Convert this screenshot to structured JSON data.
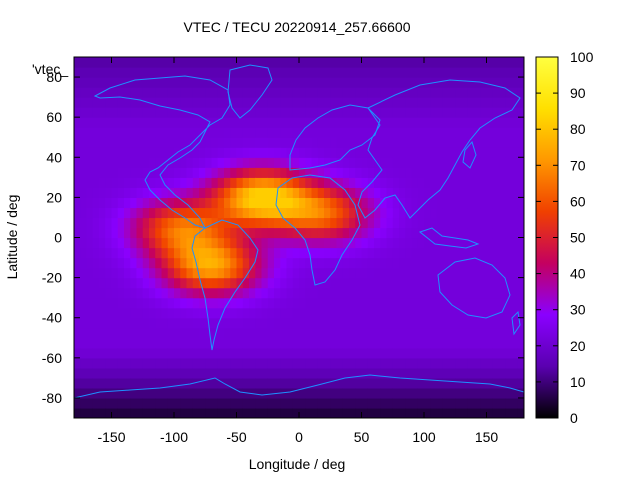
{
  "chart_data": {
    "type": "heatmap",
    "title": "VTEC / TECU 20220914_257.66600",
    "xlabel": "Longitude / deg",
    "ylabel": "Latitude / deg",
    "key_label": "'vtec_",
    "xlim": [
      -180,
      180
    ],
    "ylim": [
      -90,
      90
    ],
    "x_ticks": [
      -150,
      -100,
      -50,
      0,
      50,
      100,
      150
    ],
    "y_ticks": [
      -80,
      -60,
      -40,
      -20,
      0,
      20,
      40,
      60,
      80
    ],
    "colorbar": {
      "min": 0,
      "max": 100,
      "ticks": [
        0,
        10,
        20,
        30,
        40,
        50,
        60,
        70,
        80,
        90,
        100
      ],
      "palette": [
        "#000000",
        "#5a00b0",
        "#8a00ff",
        "#c40060",
        "#f04000",
        "#ff9800",
        "#ffe000",
        "#ffff40"
      ]
    },
    "grid": false,
    "coastline_color": "#1e90ff",
    "features": {
      "background_vtec": 22,
      "polar_low_vtec": 4,
      "crest_peak_vtec": 82,
      "equatorial_anomaly": [
        {
          "lon": -70,
          "lat": -14,
          "vtec": 72
        },
        {
          "lon": -30,
          "lat": 20,
          "vtec": 82
        },
        {
          "lon": 20,
          "lat": 12,
          "vtec": 60
        },
        {
          "lon": -95,
          "lat": 5,
          "vtec": 62
        }
      ]
    }
  }
}
